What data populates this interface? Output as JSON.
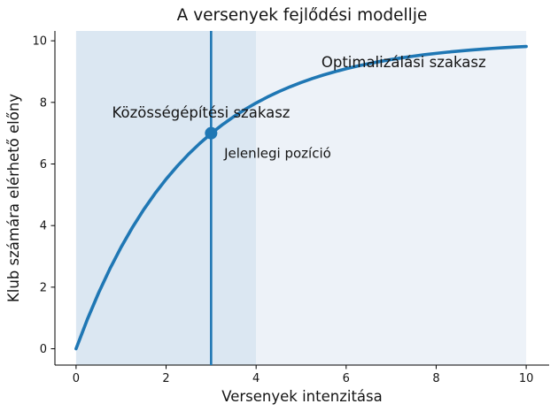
{
  "chart_data": {
    "type": "line",
    "title": "A versenyek fejlődési modellje",
    "xlabel": "Versenyek intenzitása",
    "ylabel": "Klub számára elérhető előny",
    "xlim": [
      -0.47,
      10.49
    ],
    "ylim": [
      -0.53,
      10.32
    ],
    "x_ticks": [
      0,
      2,
      4,
      6,
      8,
      10
    ],
    "y_ticks": [
      0,
      2,
      4,
      6,
      8,
      10
    ],
    "grid": false,
    "legend": "none",
    "line_color": "#1f77b4",
    "series": [
      {
        "name": "benefit-curve",
        "x": [
          0,
          0.25,
          0.5,
          0.75,
          1,
          1.25,
          1.5,
          1.75,
          2,
          2.25,
          2.5,
          2.75,
          3,
          3.25,
          3.5,
          3.75,
          4,
          4.25,
          4.5,
          4.75,
          5,
          5.25,
          5.5,
          5.75,
          6,
          6.25,
          6.5,
          6.75,
          7,
          7.25,
          7.5,
          7.75,
          8,
          8.25,
          8.5,
          8.75,
          9,
          9.25,
          9.5,
          9.75,
          10
        ],
        "y": [
          0,
          0.952,
          1.813,
          2.592,
          3.297,
          3.935,
          4.512,
          5.034,
          5.507,
          5.934,
          6.321,
          6.671,
          6.988,
          7.275,
          7.534,
          7.769,
          7.981,
          8.173,
          8.347,
          8.504,
          8.647,
          8.775,
          8.892,
          8.997,
          9.093,
          9.179,
          9.257,
          9.328,
          9.392,
          9.45,
          9.502,
          9.55,
          9.592,
          9.631,
          9.666,
          9.698,
          9.727,
          9.753,
          9.776,
          9.798,
          9.817
        ]
      }
    ],
    "spans": [
      {
        "name": "community-building-phase",
        "x0": 0,
        "x1": 4,
        "color": "#dbe7f2"
      },
      {
        "name": "optimization-phase",
        "x0": 4,
        "x1": 10,
        "color": "#edf2f8"
      }
    ],
    "vline": {
      "x": 3,
      "color": "#1f77b4"
    },
    "marker": {
      "x": 3,
      "y": 7,
      "color": "#1f77b4"
    },
    "annotations": [
      {
        "text": "Közösségépítési szakasz",
        "x": 0.8,
        "y": 7.5
      },
      {
        "text": "Optimalizálási szakasz",
        "x": 5.45,
        "y": 9.15
      },
      {
        "text": "Jelenlegi pozíció",
        "x": 3.29,
        "y": 6.2
      }
    ]
  }
}
